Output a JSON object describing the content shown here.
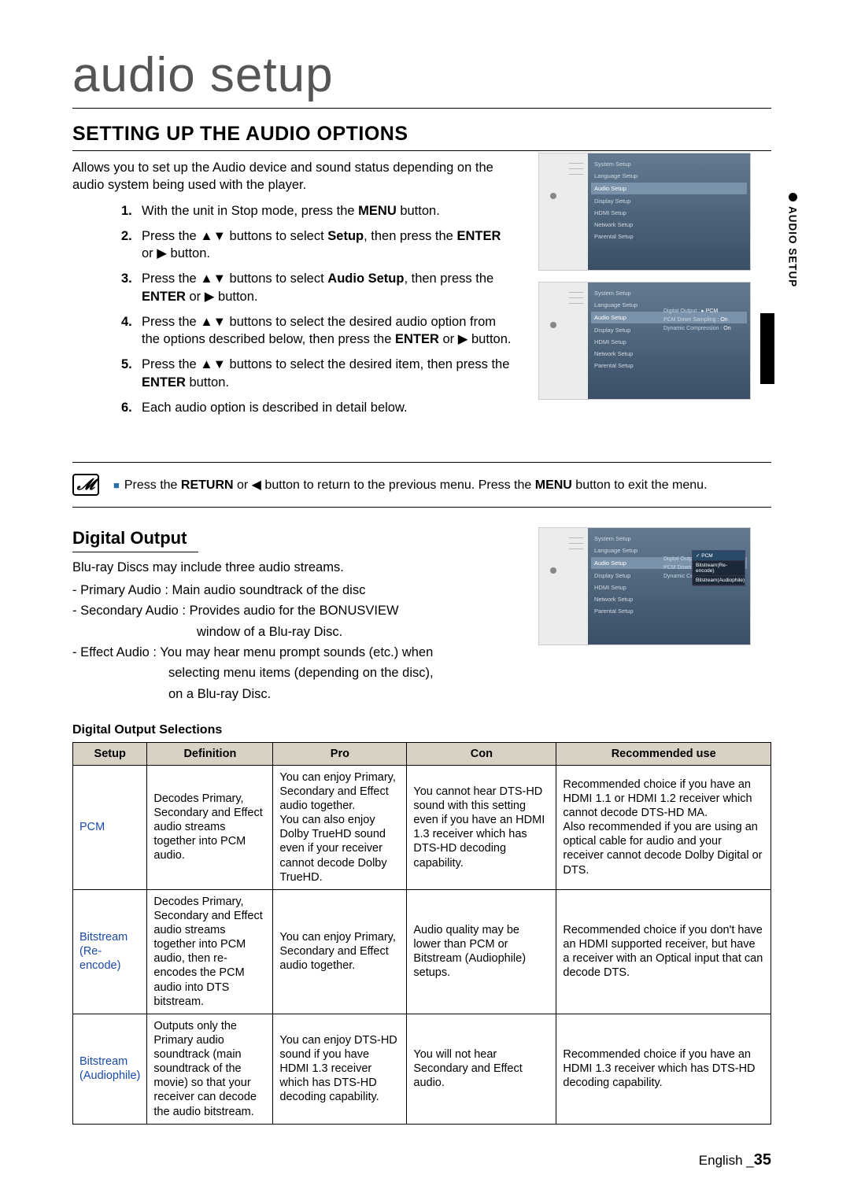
{
  "page_title": "audio setup",
  "section_title": "SETTING UP THE AUDIO OPTIONS",
  "intro": "Allows you to set up the Audio device and sound status depending on the audio system being used with the player.",
  "side_tab": "AUDIO SETUP",
  "steps": [
    {
      "n": "1.",
      "html": "With the unit in Stop mode, press the <b>MENU</b> button."
    },
    {
      "n": "2.",
      "html": "Press the ▲▼ buttons to select <b>Setup</b>, then press the <b>ENTER</b> or ▶ button."
    },
    {
      "n": "3.",
      "html": "Press the ▲▼ buttons to select <b>Audio Setup</b>, then press the <b>ENTER</b> or ▶ button."
    },
    {
      "n": "4.",
      "html": "Press the ▲▼ buttons to select the desired audio option from the options described below, then press the <b>ENTER</b> or ▶ button."
    },
    {
      "n": "5.",
      "html": "Press the ▲▼ buttons to select the desired item, then press the <b>ENTER</b> button."
    },
    {
      "n": "6.",
      "html": "Each audio option is described in detail below."
    }
  ],
  "note": "Press the <b>RETURN</b> or ◀ button to return to the previous menu. Press the <b>MENU</b> button to exit the menu.",
  "subsection_title": "Digital Output",
  "sub_intro": "Blu-ray Discs may include three audio streams.",
  "dash_items": [
    "- Primary Audio : Main audio soundtrack of the disc",
    "- Secondary Audio : Provides audio for the BONUSVIEW window of a Blu-ray Disc.",
    "- Effect Audio : You may hear menu prompt sounds (etc.) when selecting menu items (depending on the disc), on a Blu-ray Disc."
  ],
  "table_title": "Digital Output Selections",
  "table": {
    "headers": [
      "Setup",
      "Definition",
      "Pro",
      "Con",
      "Recommended use"
    ],
    "rows": [
      {
        "setup": "PCM",
        "def": "Decodes Primary, Secondary and Effect audio streams together into PCM audio.",
        "pro": "You can enjoy Primary, Secondary and Effect audio together.\nYou can also enjoy Dolby TrueHD sound even if your receiver cannot decode Dolby TrueHD.",
        "con": "You cannot hear DTS-HD sound with this setting even if you have an HDMI 1.3 receiver which has DTS-HD decoding capability.",
        "rec": "Recommended choice if you have an HDMI 1.1 or HDMI 1.2 receiver which cannot decode DTS-HD MA.\nAlso recommended if you are using an optical cable for audio and your receiver cannot decode Dolby Digital or DTS."
      },
      {
        "setup": "Bitstream (Re-encode)",
        "def": "Decodes Primary, Secondary and Effect audio streams together into PCM audio, then re-encodes the PCM audio into DTS bitstream.",
        "pro": "You can enjoy Primary, Secondary and Effect audio together.",
        "con": "Audio quality may be lower than PCM or Bitstream (Audiophile) setups.",
        "rec": "Recommended choice if you don't have an HDMI supported receiver, but have a receiver with an Optical input that can decode DTS."
      },
      {
        "setup": "Bitstream (Audiophile)",
        "def": "Outputs only the Primary audio soundtrack (main soundtrack of the movie) so that your receiver can decode the audio bitstream.",
        "pro": "You can enjoy DTS-HD sound if you have HDMI 1.3 receiver which has DTS-HD decoding capability.",
        "con": "You will not hear Secondary and Effect audio.",
        "rec": "Recommended choice if you have an HDMI 1.3 receiver which has DTS-HD decoding capability."
      }
    ]
  },
  "screenshots": {
    "menu": [
      "System Setup",
      "Language Setup",
      "Audio Setup",
      "Display Setup",
      "HDMI Setup",
      "Network Setup",
      "Parental Setup"
    ],
    "ss2_sub": [
      {
        "k": "Digital Output",
        "v": "PCM"
      },
      {
        "k": "PCM Down Sampling",
        "v": "On"
      },
      {
        "k": "Dynamic Compression",
        "v": "On"
      }
    ],
    "ss3_sub": [
      {
        "k": "Digital Output",
        "v": ""
      },
      {
        "k": "PCM Down Sampling",
        "v": ""
      },
      {
        "k": "Dynamic Compression",
        "v": ""
      }
    ],
    "popup": [
      "PCM",
      "Bitstream(Re-encode)",
      "Bitstream(Audiophile)"
    ]
  },
  "footer": {
    "lang": "English",
    "sep": "_",
    "page": "35"
  }
}
